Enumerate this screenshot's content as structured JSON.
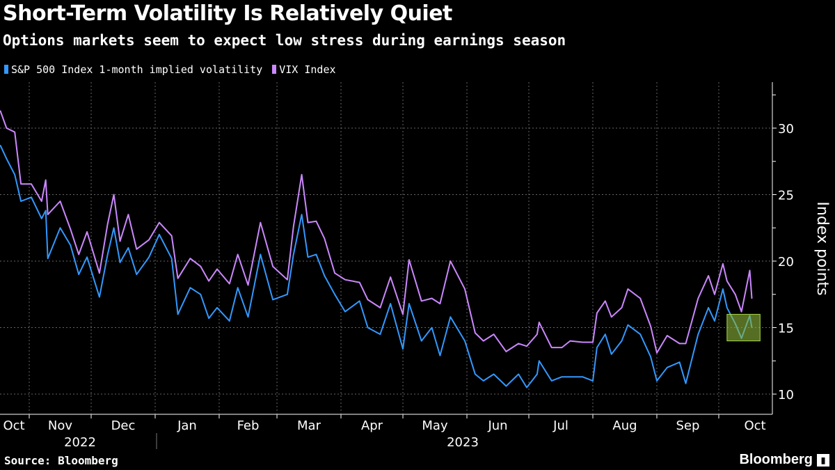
{
  "title": "Short-Term Volatility Is Relatively Quiet",
  "subtitle": "Options markets seem to expect low stress during earnings season",
  "source": "Source: Bloomberg",
  "logo": "Bloomberg",
  "colors": {
    "sp500_iv": "#3399ff",
    "vix": "#cc88ff",
    "highlight": "#8db83a",
    "background": "#000000"
  },
  "chart_data": {
    "type": "line",
    "title": "Short-Term Volatility Is Relatively Quiet",
    "ylabel": "Index points",
    "ylim": [
      8.5,
      33.5
    ],
    "yticks": [
      "10",
      "15",
      "20",
      "25",
      "30"
    ],
    "xlim": [
      "2022-10-18",
      "2023-10-21"
    ],
    "xticks": [
      "Oct",
      "Nov",
      "Dec",
      "Jan",
      "Feb",
      "Mar",
      "Apr",
      "May",
      "Jun",
      "Jul",
      "Aug",
      "Sep",
      "Oct"
    ],
    "years": [
      "2022",
      "2023"
    ],
    "grid": true,
    "legend_position": "top-left",
    "y_axis_side": "right",
    "highlight": {
      "x_range": [
        "2023-10-05",
        "2023-10-21"
      ],
      "y_range": [
        14.0,
        16.0
      ]
    },
    "x": [
      "2022-10-18",
      "2022-10-21",
      "2022-10-25",
      "2022-10-28",
      "2022-11-02",
      "2022-11-07",
      "2022-11-09",
      "2022-11-10",
      "2022-11-16",
      "2022-11-21",
      "2022-11-25",
      "2022-11-29",
      "2022-12-05",
      "2022-12-09",
      "2022-12-12",
      "2022-12-15",
      "2022-12-19",
      "2022-12-23",
      "2022-12-29",
      "2023-01-03",
      "2023-01-09",
      "2023-01-12",
      "2023-01-18",
      "2023-01-23",
      "2023-01-27",
      "2023-01-31",
      "2023-02-06",
      "2023-02-10",
      "2023-02-15",
      "2023-02-21",
      "2023-02-27",
      "2023-03-06",
      "2023-03-09",
      "2023-03-13",
      "2023-03-16",
      "2023-03-20",
      "2023-03-24",
      "2023-03-29",
      "2023-04-03",
      "2023-04-10",
      "2023-04-14",
      "2023-04-20",
      "2023-04-25",
      "2023-05-01",
      "2023-05-04",
      "2023-05-10",
      "2023-05-15",
      "2023-05-19",
      "2023-05-24",
      "2023-05-31",
      "2023-06-05",
      "2023-06-09",
      "2023-06-14",
      "2023-06-20",
      "2023-06-26",
      "2023-06-30",
      "2023-07-05",
      "2023-07-06",
      "2023-07-12",
      "2023-07-17",
      "2023-07-21",
      "2023-07-27",
      "2023-08-01",
      "2023-08-03",
      "2023-08-07",
      "2023-08-10",
      "2023-08-15",
      "2023-08-18",
      "2023-08-24",
      "2023-08-29",
      "2023-09-01",
      "2023-09-06",
      "2023-09-12",
      "2023-09-15",
      "2023-09-21",
      "2023-09-26",
      "2023-09-29",
      "2023-10-03",
      "2023-10-05",
      "2023-10-09",
      "2023-10-12",
      "2023-10-16",
      "2023-10-17"
    ],
    "series": [
      {
        "name": "S&P 500 Index 1-month implied volatility",
        "color": "#3399ff",
        "values": [
          28.7,
          27.7,
          26.5,
          24.5,
          24.8,
          23.2,
          23.8,
          20.2,
          22.5,
          21.2,
          19.0,
          20.3,
          17.3,
          20.5,
          22.5,
          19.9,
          21.0,
          19.0,
          20.3,
          22.0,
          20.2,
          16.0,
          18.0,
          17.5,
          15.7,
          16.5,
          15.5,
          18.0,
          15.8,
          20.5,
          17.1,
          17.5,
          20.5,
          23.5,
          20.3,
          20.5,
          18.9,
          17.5,
          16.2,
          17.0,
          15.0,
          14.5,
          16.8,
          13.4,
          16.8,
          14.0,
          15.0,
          12.9,
          15.8,
          14.0,
          11.5,
          11.0,
          11.5,
          10.6,
          11.5,
          10.5,
          11.5,
          12.5,
          11.0,
          11.3,
          11.3,
          11.3,
          11.0,
          13.5,
          14.5,
          13.0,
          14.0,
          15.2,
          14.5,
          12.8,
          11.0,
          12.0,
          12.4,
          10.8,
          14.5,
          16.5,
          15.5,
          17.9,
          16.5,
          15.3,
          14.2,
          15.9,
          15.0
        ]
      },
      {
        "name": "VIX Index",
        "color": "#cc88ff",
        "values": [
          31.3,
          30.0,
          29.7,
          25.8,
          25.8,
          24.5,
          26.1,
          23.5,
          24.5,
          22.4,
          20.5,
          22.2,
          19.1,
          22.8,
          25.0,
          21.5,
          23.5,
          20.9,
          21.6,
          22.9,
          21.9,
          18.7,
          20.2,
          19.6,
          18.5,
          19.4,
          18.3,
          20.5,
          18.2,
          22.9,
          19.6,
          18.6,
          22.6,
          26.5,
          22.9,
          23.0,
          21.7,
          19.1,
          18.6,
          18.4,
          17.1,
          16.5,
          18.8,
          16.0,
          20.1,
          17.0,
          17.2,
          16.8,
          20.0,
          17.9,
          14.6,
          14.0,
          14.5,
          13.2,
          13.8,
          13.6,
          14.5,
          15.4,
          13.5,
          13.5,
          14.0,
          13.9,
          13.9,
          16.1,
          17.0,
          15.8,
          16.5,
          17.9,
          17.2,
          15.1,
          13.1,
          14.4,
          13.8,
          13.8,
          17.2,
          18.9,
          17.5,
          19.8,
          18.5,
          17.5,
          16.2,
          19.3,
          17.2
        ]
      }
    ]
  }
}
